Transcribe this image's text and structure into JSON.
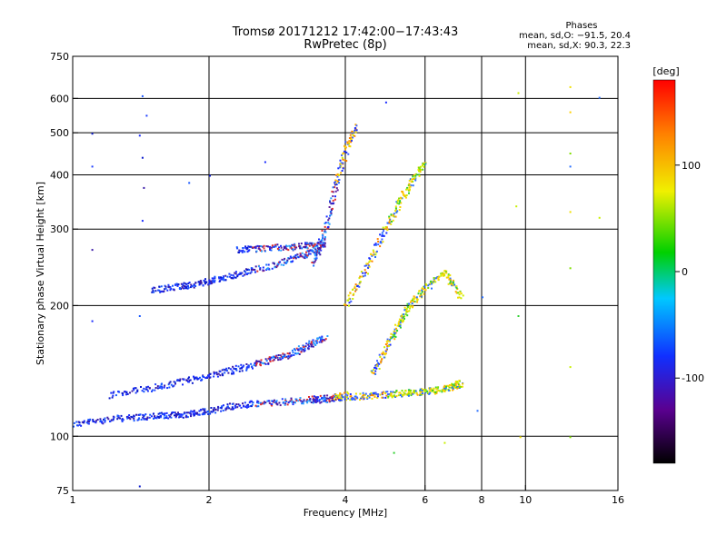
{
  "chart_data": {
    "type": "scatter",
    "title": "Tromsø 20171212 17:42:00−17:43:43",
    "subtitle": "RwPretec (8p)",
    "xlabel": "Frequency [MHz]",
    "ylabel": "Stationary phase Virtual Height [km]",
    "x_scale": "log",
    "y_scale": "log",
    "xlim": [
      1,
      16
    ],
    "ylim": [
      75,
      750
    ],
    "x_ticks": [
      1,
      2,
      4,
      6,
      8,
      10,
      16
    ],
    "y_ticks": [
      75,
      100,
      200,
      300,
      400,
      500,
      600,
      750
    ],
    "x_gridlines": [
      2,
      4,
      6,
      8,
      10
    ],
    "y_gridlines": [
      100,
      200,
      300,
      400,
      500,
      600
    ],
    "grid": true,
    "legend": {
      "title": "Phases",
      "entries": [
        "mean, sd,O: −91.5, 20.4",
        "mean, sd,X:  90.3, 22.3"
      ],
      "placement": "top-right"
    },
    "colorbar": {
      "label": "[deg]",
      "range": [
        -180,
        180
      ],
      "ticks": [
        100,
        0,
        -100
      ],
      "colors": [
        "#000000",
        "#5a0090",
        "#1030ff",
        "#00c8ff",
        "#00d000",
        "#f0f000",
        "#ff8000",
        "#ff0000"
      ]
    },
    "traces": [
      {
        "name": "",
        "x": [
          1.0,
          1.2,
          1.4,
          1.6,
          1.8,
          2.0,
          2.3,
          2.7,
          3.1,
          3.6,
          4.0
        ],
        "y": [
          107,
          110,
          111,
          112,
          113,
          115,
          118,
          120,
          121,
          122,
          125
        ]
      },
      {
        "name": "",
        "x": [
          3.3,
          3.8,
          4.3,
          4.8,
          5.3,
          5.8,
          6.3,
          6.8,
          7.2
        ],
        "y": [
          122,
          123,
          124,
          125,
          126,
          127,
          128,
          130,
          133
        ]
      },
      {
        "name": "",
        "x": [
          1.5,
          1.7,
          1.9,
          2.1,
          2.4,
          2.8,
          3.2,
          3.5
        ],
        "y": [
          218,
          222,
          226,
          232,
          240,
          250,
          262,
          270
        ]
      },
      {
        "name": "",
        "x": [
          2.3,
          2.6,
          3.0,
          3.3,
          3.6
        ],
        "y": [
          270,
          272,
          274,
          276,
          278
        ]
      },
      {
        "name": "",
        "x": [
          1.2,
          1.5,
          1.8,
          2.1,
          2.4,
          2.7,
          3.0,
          3.3,
          3.6
        ],
        "y": [
          125,
          130,
          135,
          140,
          145,
          150,
          155,
          162,
          170
        ]
      },
      {
        "name": "",
        "x": [
          3.4,
          3.6,
          3.8,
          4.0,
          4.2
        ],
        "y": [
          250,
          300,
          380,
          460,
          520
        ]
      },
      {
        "name": "",
        "x": [
          4.0,
          4.4,
          4.8,
          5.2,
          5.6,
          6.0
        ],
        "y": [
          200,
          240,
          290,
          340,
          390,
          430
        ]
      },
      {
        "name": "",
        "x": [
          4.6,
          4.9,
          5.2,
          5.5,
          6.0,
          6.6,
          7.2
        ],
        "y": [
          140,
          160,
          180,
          200,
          220,
          240,
          210
        ]
      }
    ],
    "outliers": [
      {
        "x": 1.42,
        "y": 610
      },
      {
        "x": 1.45,
        "y": 550
      },
      {
        "x": 1.4,
        "y": 495
      },
      {
        "x": 1.42,
        "y": 440
      },
      {
        "x": 1.43,
        "y": 375
      },
      {
        "x": 1.42,
        "y": 315
      },
      {
        "x": 1.4,
        "y": 190
      },
      {
        "x": 1.4,
        "y": 77
      },
      {
        "x": 1.1,
        "y": 500
      },
      {
        "x": 1.1,
        "y": 420
      },
      {
        "x": 1.1,
        "y": 270
      },
      {
        "x": 1.1,
        "y": 185
      },
      {
        "x": 2.65,
        "y": 430
      },
      {
        "x": 2.0,
        "y": 400
      },
      {
        "x": 1.8,
        "y": 385
      },
      {
        "x": 9.6,
        "y": 620
      },
      {
        "x": 9.5,
        "y": 340
      },
      {
        "x": 9.6,
        "y": 190
      },
      {
        "x": 9.7,
        "y": 100
      },
      {
        "x": 12.5,
        "y": 640
      },
      {
        "x": 12.5,
        "y": 560
      },
      {
        "x": 12.5,
        "y": 450
      },
      {
        "x": 12.5,
        "y": 420
      },
      {
        "x": 12.5,
        "y": 330
      },
      {
        "x": 12.5,
        "y": 245
      },
      {
        "x": 12.5,
        "y": 145
      },
      {
        "x": 12.5,
        "y": 100
      },
      {
        "x": 14.5,
        "y": 605
      },
      {
        "x": 14.5,
        "y": 320
      },
      {
        "x": 7.8,
        "y": 115
      },
      {
        "x": 8.0,
        "y": 210
      },
      {
        "x": 6.6,
        "y": 97
      },
      {
        "x": 5.1,
        "y": 92
      },
      {
        "x": 4.9,
        "y": 590
      }
    ]
  }
}
